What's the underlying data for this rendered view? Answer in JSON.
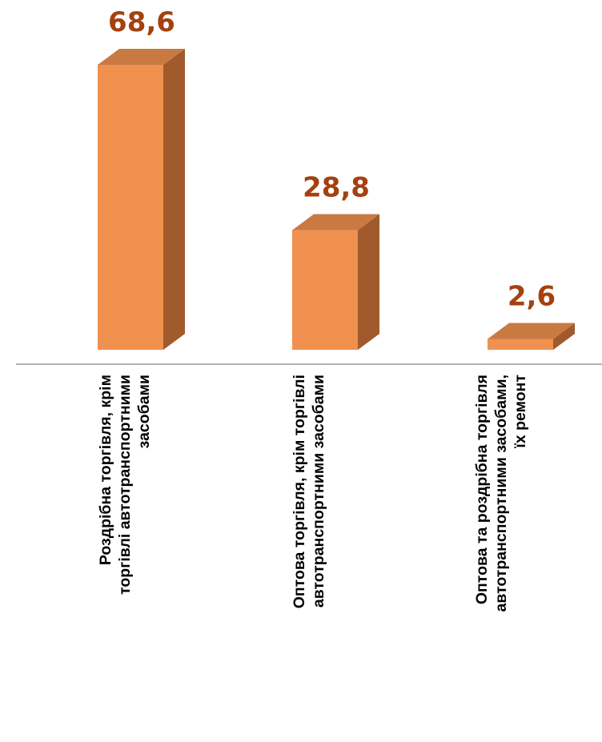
{
  "chart_data": {
    "type": "bar",
    "style": "3d-column",
    "categories": [
      [
        "Роздрібна торгівля, крім",
        "торгівлі автотранспортними",
        "засобами"
      ],
      [
        "Оптова торгівля, крім торгівлі",
        "автотранспортними засобами"
      ],
      [
        "Оптова та роздрібна торгівля",
        "автотранспортними засобами,",
        "їх ремонт"
      ]
    ],
    "values": [
      68.6,
      28.8,
      2.6
    ],
    "value_labels": [
      "68,6",
      "28,8",
      "2,6"
    ],
    "ylim": [
      0,
      68.6
    ],
    "grid": false,
    "legend": "none",
    "colors": {
      "front": "#f0914f",
      "top": "#c97a42",
      "side": "#a05a2c",
      "value_label": "#a5410f",
      "axis": "#9a9a9a"
    }
  }
}
